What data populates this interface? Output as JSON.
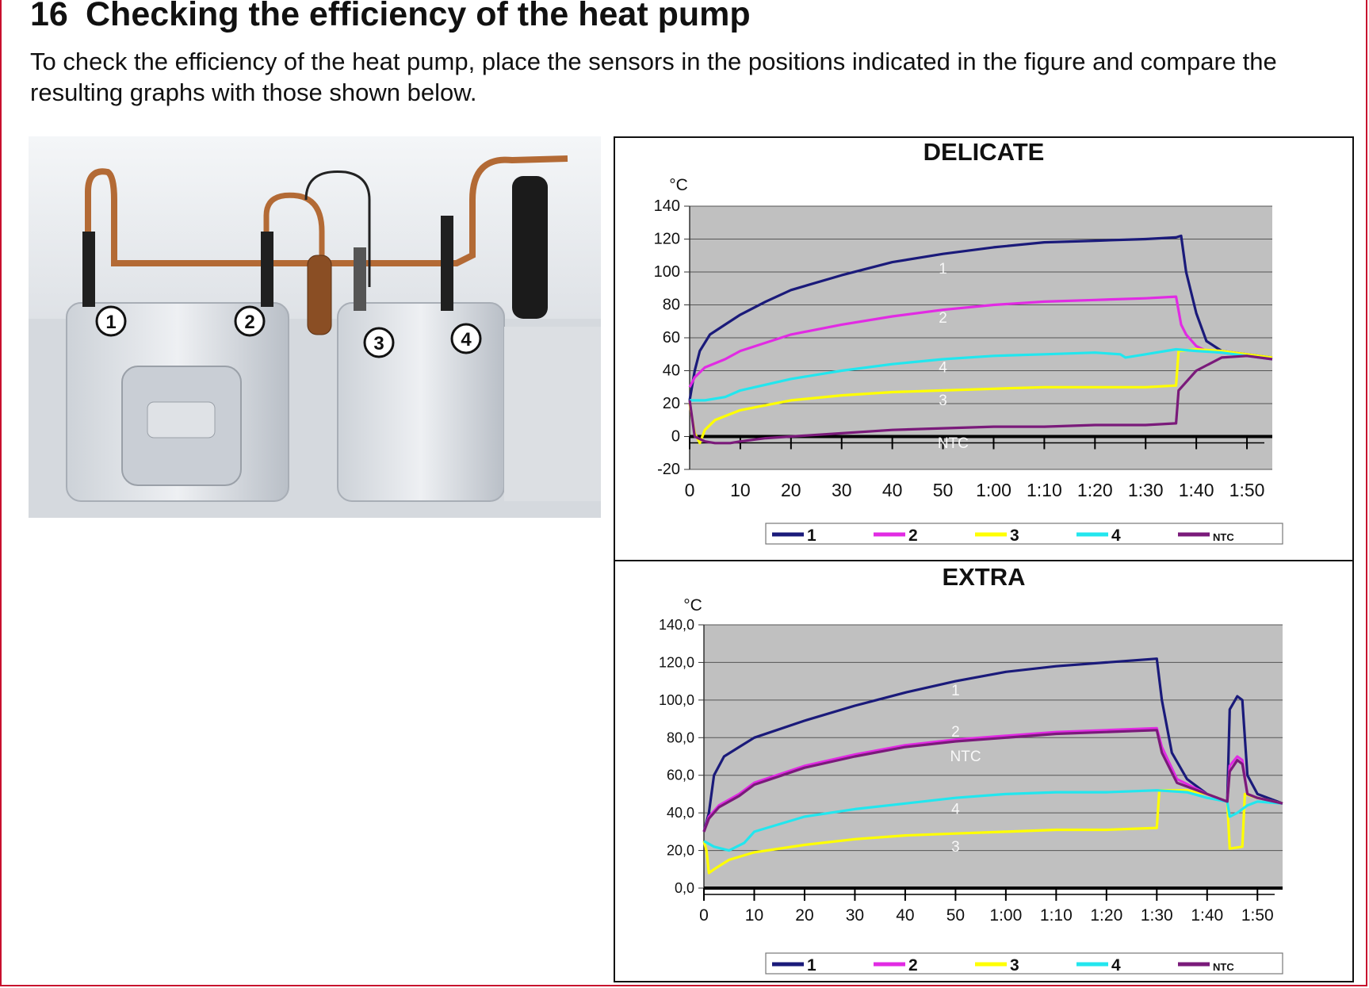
{
  "section": {
    "number": "16",
    "title": "Checking the efficiency of the heat pump",
    "intro": "To check the efficiency of the heat pump, place the sensors in the positions indicated in the figure and compare the resulting graphs with those shown below."
  },
  "photo": {
    "sensor_markers": [
      "1",
      "2",
      "3",
      "4"
    ]
  },
  "chart_data": [
    {
      "type": "line",
      "title": "DELICATE",
      "ylabel": "°C",
      "x_ticks": [
        "0",
        "10",
        "20",
        "30",
        "40",
        "50",
        "1:00",
        "1:10",
        "1:20",
        "1:30",
        "1:40",
        "1:50"
      ],
      "y_ticks": [
        "140",
        "120",
        "100",
        "80",
        "60",
        "40",
        "20",
        "0",
        "-20"
      ],
      "xlim": [
        0,
        115
      ],
      "ylim": [
        -20,
        140
      ],
      "grid": true,
      "legend": "bottom",
      "legend_labels": [
        "1",
        "2",
        "3",
        "4",
        "NTC"
      ],
      "series": [
        {
          "name": "1",
          "label": "1",
          "label_at": [
            50,
            102
          ],
          "color": "#1a1a7a",
          "x": [
            0,
            1,
            2,
            4,
            7,
            10,
            15,
            20,
            30,
            40,
            50,
            60,
            70,
            80,
            90,
            96,
            97,
            98,
            100,
            102,
            105,
            110,
            115
          ],
          "y": [
            22,
            40,
            52,
            62,
            68,
            74,
            82,
            89,
            98,
            106,
            111,
            115,
            118,
            119,
            120,
            121,
            122,
            100,
            75,
            58,
            52,
            50,
            48
          ]
        },
        {
          "name": "2",
          "label": "2",
          "label_at": [
            50,
            72
          ],
          "color": "#e12be3",
          "x": [
            0,
            1,
            3,
            7,
            10,
            20,
            30,
            40,
            50,
            60,
            70,
            80,
            90,
            96,
            97,
            98,
            100,
            102,
            105,
            110,
            115
          ],
          "y": [
            30,
            36,
            42,
            47,
            52,
            62,
            68,
            73,
            77,
            80,
            82,
            83,
            84,
            85,
            68,
            62,
            55,
            52,
            51,
            49,
            47
          ]
        },
        {
          "name": "3",
          "label": "3",
          "label_at": [
            50,
            22
          ],
          "color": "#ffff00",
          "x": [
            0,
            1,
            2,
            3,
            5,
            10,
            20,
            30,
            40,
            50,
            60,
            70,
            80,
            90,
            96,
            96.5,
            100,
            105,
            110,
            115
          ],
          "y": [
            20,
            2,
            -4,
            4,
            10,
            16,
            22,
            25,
            27,
            28,
            29,
            30,
            30,
            30,
            31,
            52,
            53,
            52,
            50,
            48
          ]
        },
        {
          "name": "4",
          "label": "4",
          "label_at": [
            50,
            42
          ],
          "color": "#22e6ee",
          "x": [
            0,
            3,
            7,
            10,
            20,
            30,
            40,
            50,
            60,
            70,
            80,
            85,
            86,
            90,
            96,
            100,
            105,
            110,
            115
          ],
          "y": [
            22,
            22,
            24,
            28,
            35,
            40,
            44,
            47,
            49,
            50,
            51,
            50,
            48,
            50,
            53,
            52,
            51,
            49,
            47
          ]
        },
        {
          "name": "NTC",
          "label": "NTC",
          "label_at": [
            52,
            -4
          ],
          "color": "#7a1a7a",
          "x": [
            0,
            1,
            3,
            5,
            8,
            10,
            15,
            20,
            30,
            40,
            50,
            60,
            70,
            80,
            90,
            96,
            96.5,
            100,
            105,
            110,
            115
          ],
          "y": [
            22,
            0,
            -3,
            -4,
            -4,
            -3,
            -1,
            0,
            2,
            4,
            5,
            6,
            6,
            7,
            7,
            8,
            28,
            40,
            48,
            49,
            47
          ]
        }
      ]
    },
    {
      "type": "line",
      "title": "EXTRA",
      "ylabel": "°C",
      "x_ticks": [
        "0",
        "10",
        "20",
        "30",
        "40",
        "50",
        "1:00",
        "1:10",
        "1:20",
        "1:30",
        "1:40",
        "1:50"
      ],
      "y_ticks": [
        "140,0",
        "120,0",
        "100,0",
        "80,0",
        "60,0",
        "40,0",
        "20,0",
        "0,0"
      ],
      "xlim": [
        0,
        115
      ],
      "ylim": [
        0,
        140
      ],
      "grid": true,
      "legend": "bottom",
      "legend_labels": [
        "1",
        "2",
        "3",
        "4",
        "NTC"
      ],
      "series": [
        {
          "name": "1",
          "label": "1",
          "label_at": [
            50,
            105
          ],
          "color": "#1a1a7a",
          "x": [
            0,
            1,
            2,
            4,
            7,
            10,
            20,
            30,
            40,
            50,
            60,
            70,
            80,
            90,
            91,
            93,
            96,
            100,
            104,
            104.5,
            106,
            107,
            108,
            110,
            115
          ],
          "y": [
            30,
            40,
            60,
            70,
            75,
            80,
            89,
            97,
            104,
            110,
            115,
            118,
            120,
            122,
            100,
            72,
            58,
            50,
            46,
            95,
            102,
            100,
            60,
            50,
            45
          ]
        },
        {
          "name": "2",
          "label": "2",
          "label_at": [
            50,
            83
          ],
          "color": "#e12be3",
          "x": [
            0,
            1,
            3,
            7,
            10,
            20,
            30,
            40,
            50,
            60,
            70,
            80,
            90,
            91,
            94,
            100,
            104,
            104.5,
            106,
            107,
            108,
            110,
            115
          ],
          "y": [
            30,
            38,
            44,
            50,
            56,
            65,
            71,
            76,
            79,
            81,
            83,
            84,
            85,
            75,
            58,
            50,
            46,
            65,
            70,
            68,
            50,
            48,
            45
          ]
        },
        {
          "name": "3",
          "label": "3",
          "label_at": [
            50,
            22
          ],
          "color": "#ffff00",
          "x": [
            0,
            0.5,
            1,
            2,
            5,
            10,
            20,
            30,
            40,
            50,
            60,
            70,
            80,
            90,
            90.5,
            96,
            100,
            104,
            104.5,
            107,
            107.5,
            110,
            115
          ],
          "y": [
            25,
            20,
            8,
            10,
            15,
            19,
            23,
            26,
            28,
            29,
            30,
            31,
            31,
            32,
            52,
            52,
            50,
            46,
            21,
            22,
            50,
            48,
            45
          ]
        },
        {
          "name": "4",
          "label": "4",
          "label_at": [
            50,
            42
          ],
          "color": "#22e6ee",
          "x": [
            0,
            2,
            5,
            8,
            10,
            20,
            30,
            40,
            50,
            60,
            70,
            80,
            90,
            96,
            100,
            104,
            104.5,
            106,
            107,
            108,
            110,
            115
          ],
          "y": [
            25,
            22,
            20,
            24,
            30,
            38,
            42,
            45,
            48,
            50,
            51,
            51,
            52,
            51,
            48,
            46,
            38,
            40,
            42,
            44,
            46,
            45
          ]
        },
        {
          "name": "NTC",
          "label": "NTC",
          "label_at": [
            52,
            70
          ],
          "color": "#7a1a7a",
          "x": [
            0,
            1,
            3,
            7,
            10,
            20,
            30,
            40,
            50,
            60,
            70,
            80,
            90,
            91,
            94,
            100,
            104,
            104.5,
            106,
            107,
            108,
            110,
            115
          ],
          "y": [
            30,
            37,
            43,
            49,
            55,
            64,
            70,
            75,
            78,
            80,
            82,
            83,
            84,
            72,
            56,
            50,
            46,
            62,
            68,
            66,
            50,
            48,
            45
          ]
        }
      ]
    }
  ]
}
